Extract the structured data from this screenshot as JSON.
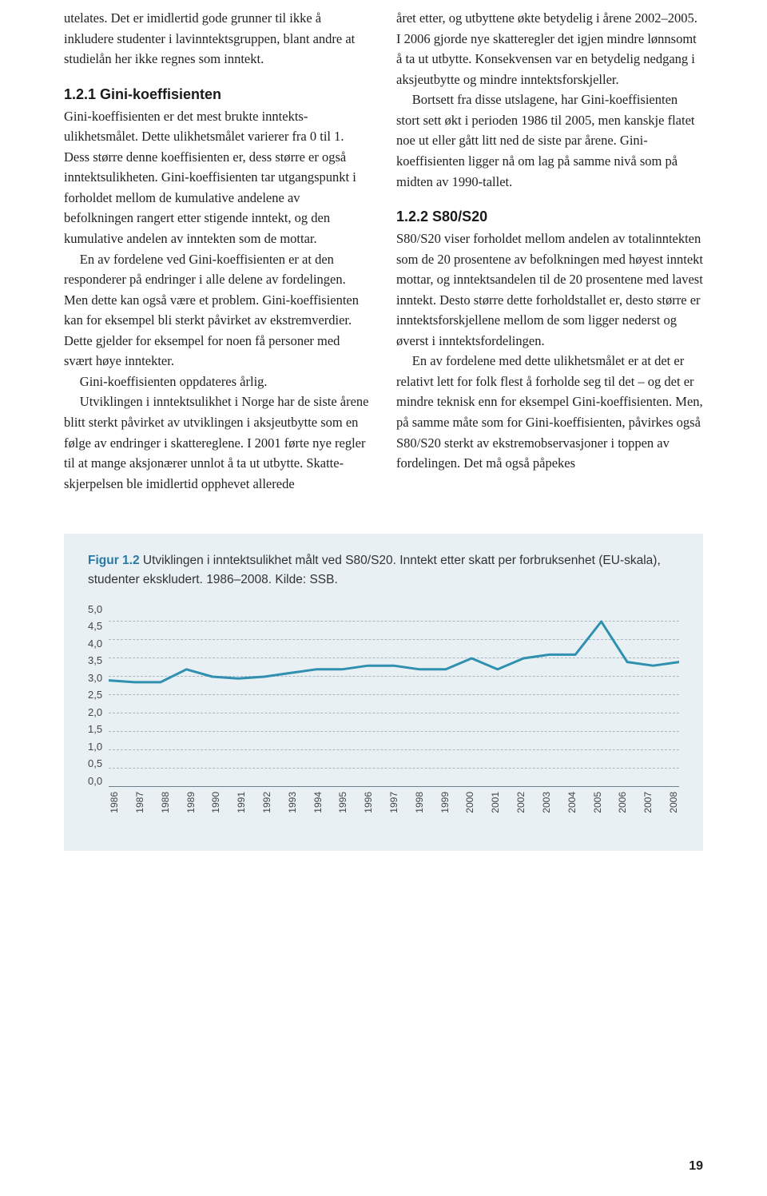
{
  "left_column": {
    "p1": "utelates. Det er imidlertid gode grunner til ikke å inkludere studenter i lavinntektsgruppen, blant andre at studielån her ikke regnes som inntekt.",
    "h1": "1.2.1 Gini-koeffisienten",
    "p2": "Gini-koeffisienten er det mest brukte inntekts­ulikhetsmålet. Dette ulikhetsmålet varierer fra 0 til 1. Dess større denne koeffisienten er, dess større er også inntektsulikheten. Gini-koeffisi­enten tar utgangspunkt i forholdet mellom de kumulative andelene av befolkningen rangert etter stigende inntekt, og den kumulative andelen av inntekten som de mottar.",
    "p3": "En av fordelene ved Gini-koeffisienten er at den responderer på endringer i alle delene av fordelingen. Men dette kan også være et problem. Gini-koeffisienten kan for eksempel bli sterkt påvirket av ekstremverdier. Dette gjelder for eksempel for noen få personer med svært høye inntekter.",
    "p4": "Gini-koeffisienten oppdateres årlig.",
    "p5": "Utviklingen i inntektsulikhet i Norge har de siste årene blitt sterkt påvirket av utviklingen i aksjeutbytte som en følge av endringer i skatte­reglene. I 2001 førte nye regler til at mange aksjonærer unnlot å ta ut utbytte. Skatte­skjerpelsen ble imidlertid opphevet allerede"
  },
  "right_column": {
    "p1": "året etter, og utbyttene økte betydelig i årene 2002–2005. I 2006 gjorde nye skatteregler det igjen mindre lønnsomt å ta ut utbytte. Konse­kvensen var en betydelig nedgang i aksjeutbytte og mindre inntektsforskjeller.",
    "p2": "Bortsett fra disse utslagene, har Gini-koeffi­sienten stort sett økt i perioden 1986 til 2005, men kanskje flatet noe ut eller gått litt ned de siste par årene. Gini-koeffisienten ligger nå om lag på samme nivå som på midten av 1990-tallet.",
    "h1": "1.2.2 S80/S20",
    "p3": "S80/S20 viser forholdet mellom andelen av totalinntekten som de 20 prosentene av befolkningen med høyest inntekt mottar, og inntektsandelen til de 20 prosentene med lavest inntekt. Desto større dette forholdstallet er, desto større er inntektsforskjellene mellom de som ligger nederst og øverst i inntekts­fordelingen.",
    "p4": "En av fordelene med dette ulikhetsmålet er at det er relativt lett for folk flest å forholde seg til det – og det er mindre teknisk enn for eksempel Gini-koeffisienten. Men, på samme måte som for Gini-koeffisienten, påvirkes også S80/S20 sterkt av ekstremobservasjoner i toppen av fordelingen. Det må også påpekes"
  },
  "figure": {
    "label": "Figur 1.2",
    "caption_rest": " Utviklingen i inntektsulikhet målt ved S80/S20. Inntekt etter skatt per forbruksenhet (EU-skala), studenter ekskludert. 1986–2008. Kilde: SSB.",
    "type": "line",
    "background_color": "#e8f0f4",
    "grid_color": "#a9b8c2",
    "line_color": "#2f90b0",
    "line_width": 3,
    "ylim": [
      0.0,
      5.0
    ],
    "ytick_step": 0.5,
    "y_ticks": [
      "5,0",
      "4,5",
      "4,0",
      "3,5",
      "3,0",
      "2,5",
      "2,0",
      "1,5",
      "1,0",
      "0,5",
      "0,0"
    ],
    "x_labels": [
      "1986",
      "1987",
      "1988",
      "1989",
      "1990",
      "1991",
      "1992",
      "1993",
      "1994",
      "1995",
      "1996",
      "1997",
      "1998",
      "1999",
      "2000",
      "2001",
      "2002",
      "2003",
      "2004",
      "2005",
      "2006",
      "2007",
      "2008"
    ],
    "values": [
      2.9,
      2.85,
      2.85,
      3.2,
      3.0,
      2.95,
      3.0,
      3.1,
      3.2,
      3.2,
      3.3,
      3.3,
      3.2,
      3.2,
      3.5,
      3.2,
      3.5,
      3.6,
      3.6,
      4.5,
      3.4,
      3.3,
      3.4
    ],
    "label_fontsize": 13,
    "tick_fontsize": 12
  },
  "page_number": "19"
}
